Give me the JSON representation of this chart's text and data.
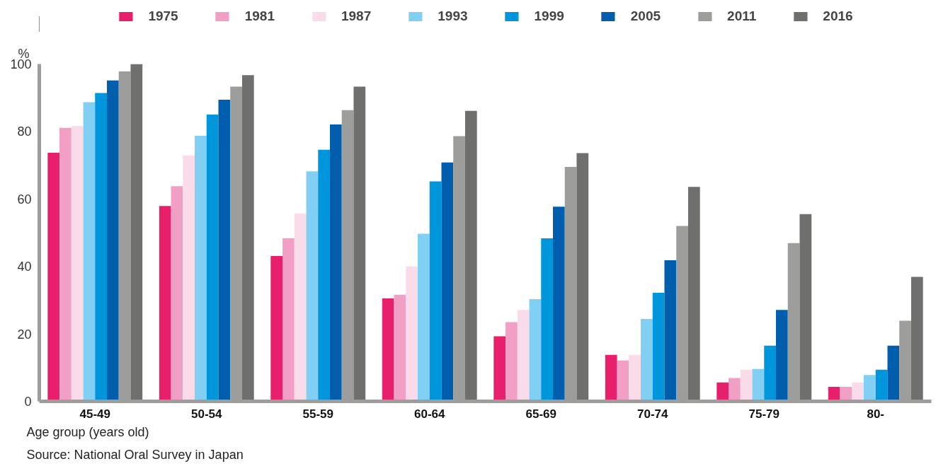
{
  "chart_data": {
    "type": "bar",
    "ylabel": "%",
    "xlabel": "Age group (years old)",
    "annotations": [
      "Source: National Oral Survey in Japan"
    ],
    "categories": [
      "45-49",
      "50-54",
      "55-59",
      "60-64",
      "65-69",
      "70-74",
      "75-79",
      "80-"
    ],
    "ylim": [
      0,
      100
    ],
    "yticks": [
      0,
      20,
      40,
      60,
      80,
      100
    ],
    "grid": false,
    "legend": "top",
    "series": [
      {
        "name": "1975",
        "color": "#e8206c",
        "values": [
          73.7,
          57.9,
          43.1,
          30.5,
          19.3,
          13.8,
          5.6,
          4.3
        ]
      },
      {
        "name": "1981",
        "color": "#f29fc5",
        "values": [
          81.1,
          63.8,
          48.4,
          31.6,
          23.5,
          12.1,
          6.9,
          4.3
        ]
      },
      {
        "name": "1987",
        "color": "#fadbea",
        "values": [
          81.6,
          72.9,
          55.7,
          40.0,
          27.1,
          13.8,
          9.4,
          5.6
        ]
      },
      {
        "name": "1993",
        "color": "#82cff4",
        "values": [
          88.7,
          78.7,
          68.2,
          49.7,
          30.3,
          24.4,
          9.6,
          7.8
        ]
      },
      {
        "name": "1999",
        "color": "#0096db",
        "values": [
          91.4,
          85.0,
          74.6,
          65.2,
          48.3,
          32.2,
          16.5,
          9.4
        ]
      },
      {
        "name": "2005",
        "color": "#005eac",
        "values": [
          95.1,
          89.4,
          82.1,
          70.8,
          57.7,
          41.8,
          27.1,
          16.5
        ]
      },
      {
        "name": "2011",
        "color": "#9d9d9c",
        "values": [
          97.8,
          93.3,
          86.3,
          78.6,
          69.5,
          52.0,
          46.9,
          23.9
        ]
      },
      {
        "name": "2016",
        "color": "#6f6f6e",
        "values": [
          100,
          96.7,
          93.3,
          86.1,
          73.6,
          63.6,
          55.5,
          36.9
        ]
      }
    ]
  }
}
